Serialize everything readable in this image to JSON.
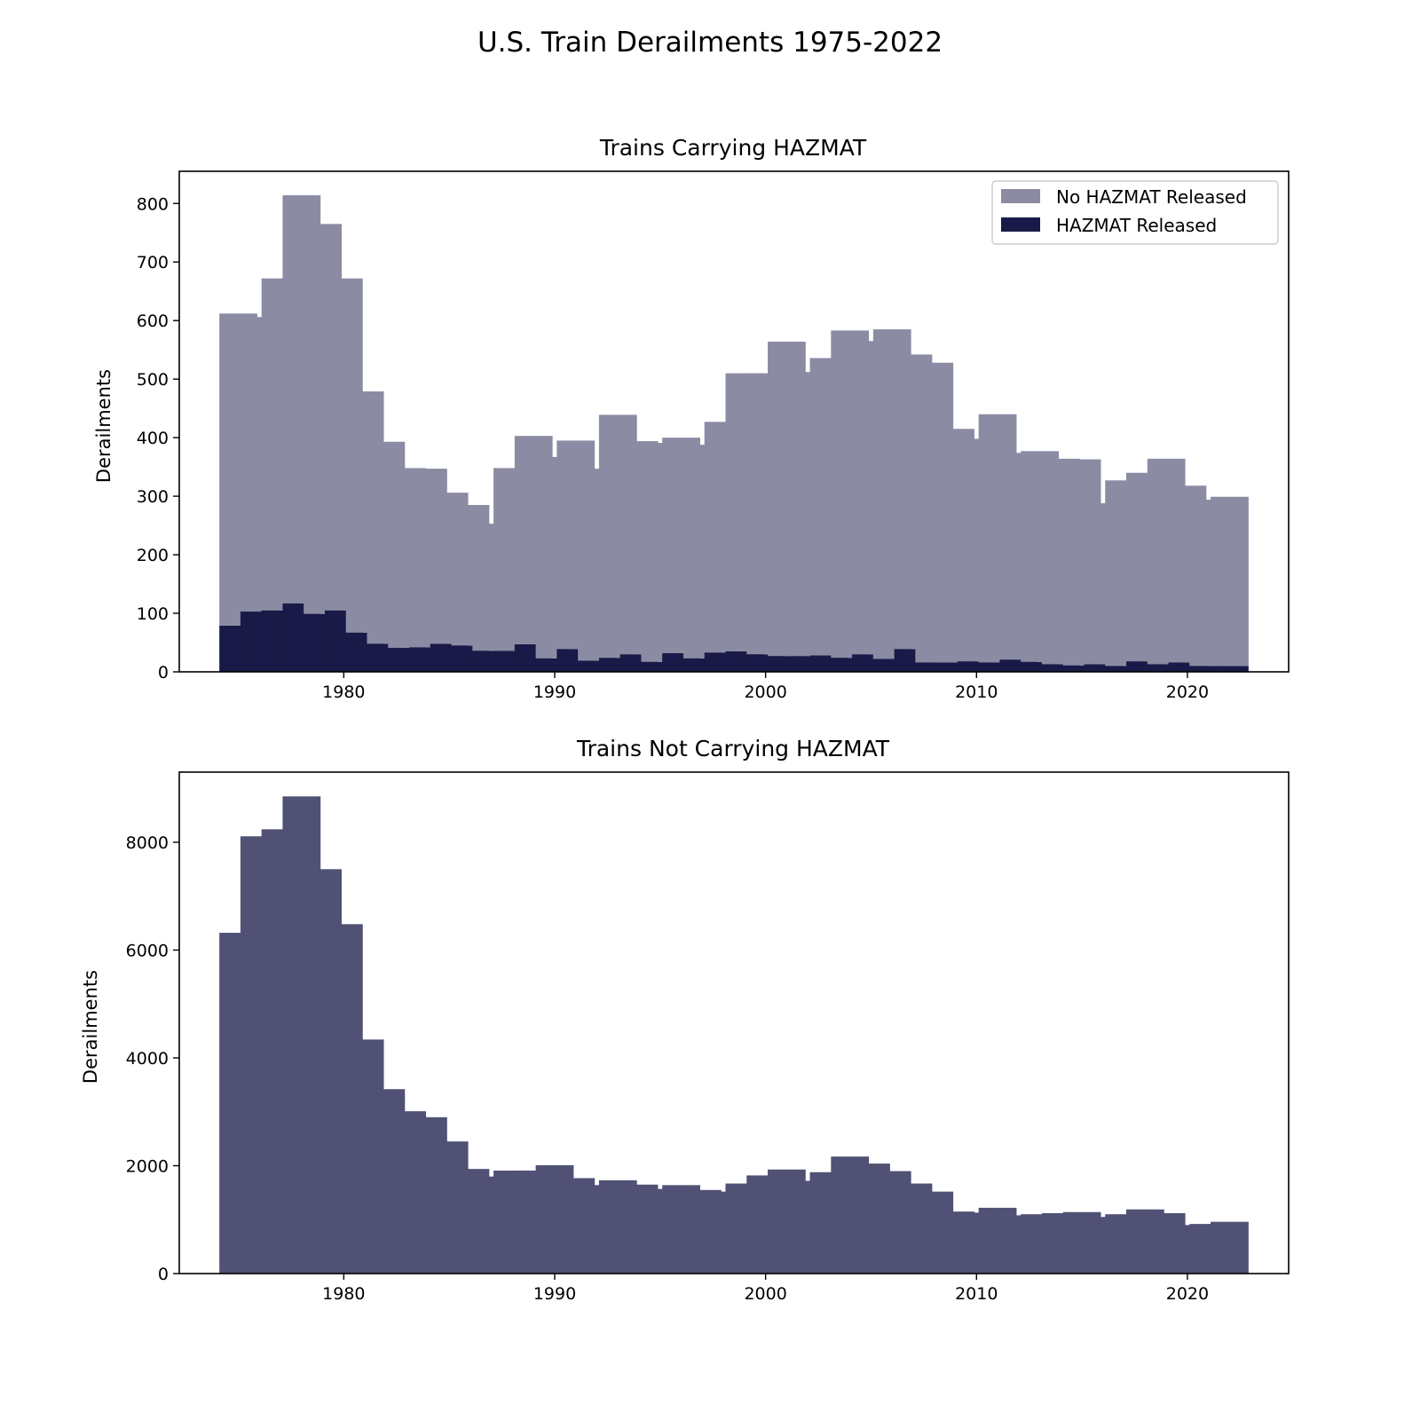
{
  "figure_title": "U.S. Train Derailments 1975-2022",
  "colors": {
    "no_hazmat_released": "#8b8ca3",
    "hazmat_released": "#191a47",
    "not_carrying": "#505174",
    "axes_frame": "#000000",
    "background": "#ffffff"
  },
  "chart_data": [
    {
      "type": "bar",
      "stacked": true,
      "title": "Trains Carrying HAZMAT",
      "xlabel": "",
      "ylabel": "Derailments",
      "xlim": [
        1972.2,
        2024.8
      ],
      "ylim": [
        0,
        855
      ],
      "xticks": [
        1980,
        1990,
        2000,
        2010,
        2020
      ],
      "yticks": [
        0,
        100,
        200,
        300,
        400,
        500,
        600,
        700,
        800
      ],
      "grid": false,
      "legend": {
        "placement": "upper right"
      },
      "x": [
        1975,
        1976,
        1977,
        1978,
        1979,
        1980,
        1981,
        1982,
        1983,
        1984,
        1985,
        1986,
        1987,
        1988,
        1989,
        1990,
        1991,
        1992,
        1993,
        1994,
        1995,
        1996,
        1997,
        1998,
        1999,
        2000,
        2001,
        2002,
        2003,
        2004,
        2005,
        2006,
        2007,
        2008,
        2009,
        2010,
        2011,
        2012,
        2013,
        2014,
        2015,
        2016,
        2017,
        2018,
        2019,
        2020,
        2021,
        2022
      ],
      "series": [
        {
          "name": "HAZMAT Released",
          "values": [
            79,
            103,
            105,
            117,
            99,
            105,
            67,
            48,
            41,
            42,
            48,
            45,
            36,
            36,
            47,
            23,
            39,
            19,
            24,
            30,
            17,
            32,
            23,
            33,
            35,
            30,
            27,
            27,
            28,
            24,
            30,
            22,
            39,
            16,
            16,
            18,
            16,
            21,
            17,
            13,
            11,
            13,
            10,
            18,
            13,
            16,
            10,
            10
          ]
        },
        {
          "name": "No HAZMAT Released",
          "values": [
            533,
            503,
            567,
            697,
            666,
            567,
            412,
            345,
            307,
            305,
            258,
            240,
            217,
            312,
            356,
            344,
            356,
            328,
            415,
            364,
            374,
            368,
            365,
            394,
            475,
            480,
            537,
            485,
            508,
            559,
            535,
            563,
            503,
            512,
            399,
            380,
            424,
            353,
            360,
            351,
            352,
            275,
            317,
            322,
            351,
            302,
            284,
            289
          ]
        }
      ]
    },
    {
      "type": "bar",
      "title": "Trains Not Carrying HAZMAT",
      "xlabel": "",
      "ylabel": "Derailments",
      "xlim": [
        1972.2,
        2024.8
      ],
      "ylim": [
        0,
        9300
      ],
      "xticks": [
        1980,
        1990,
        2000,
        2010,
        2020
      ],
      "yticks": [
        0,
        2000,
        4000,
        6000,
        8000
      ],
      "grid": false,
      "x": [
        1975,
        1976,
        1977,
        1978,
        1979,
        1980,
        1981,
        1982,
        1983,
        1984,
        1985,
        1986,
        1987,
        1988,
        1989,
        1990,
        1991,
        1992,
        1993,
        1994,
        1995,
        1996,
        1997,
        1998,
        1999,
        2000,
        2001,
        2002,
        2003,
        2004,
        2005,
        2006,
        2007,
        2008,
        2009,
        2010,
        2011,
        2012,
        2013,
        2014,
        2015,
        2016,
        2017,
        2018,
        2019,
        2020,
        2021,
        2022
      ],
      "values": [
        6320,
        8110,
        8240,
        8850,
        7500,
        6480,
        4340,
        3420,
        3010,
        2900,
        2450,
        1940,
        1800,
        1910,
        1910,
        2010,
        1770,
        1640,
        1730,
        1650,
        1570,
        1640,
        1550,
        1520,
        1670,
        1820,
        1930,
        1720,
        1880,
        2170,
        2040,
        1900,
        1670,
        1520,
        1150,
        1130,
        1220,
        1080,
        1100,
        1120,
        1140,
        1050,
        1100,
        1190,
        1120,
        900,
        920,
        960
      ]
    }
  ]
}
